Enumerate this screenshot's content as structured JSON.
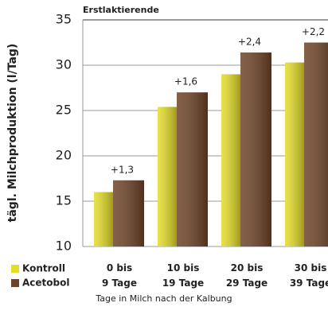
{
  "chart_data": {
    "type": "bar",
    "title": "Erstlaktierende",
    "y_label": "tägl. Milchproduktion (l/Tag)",
    "x_label": "Tage in Milch nach der Kalbung",
    "categories": [
      "0 bis\n9 Tage",
      "10 bis\n19 Tage",
      "20 bis\n29 Tage",
      "30 bis\n39 Tage"
    ],
    "series": [
      {
        "name": "Kontroll",
        "color": "#e4dc2a",
        "values": [
          16.0,
          25.4,
          29.0,
          30.3
        ]
      },
      {
        "name": "Acetobol",
        "color": "#6e4428",
        "values": [
          17.3,
          27.0,
          31.4,
          32.5
        ]
      }
    ],
    "annotations": [
      "+1,3",
      "+1,6",
      "+2,4",
      "+2,2"
    ],
    "ylim": [
      10,
      35
    ],
    "yticks": [
      10,
      15,
      20,
      25,
      30,
      35
    ],
    "grid": true
  }
}
